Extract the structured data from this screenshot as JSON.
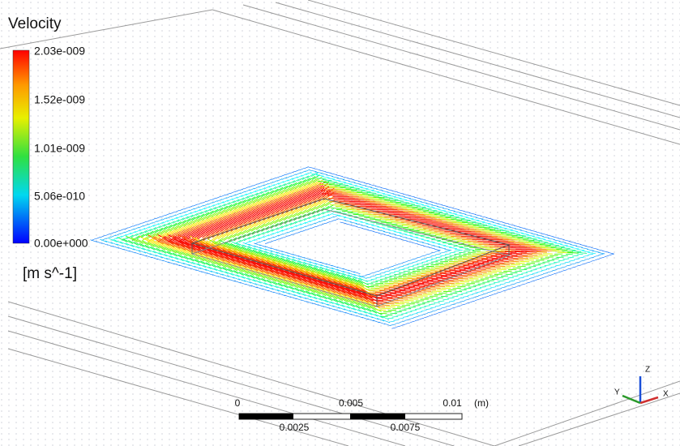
{
  "legend": {
    "title": "Velocity",
    "ticks": [
      "2.03e-009",
      "1.52e-009",
      "1.01e-009",
      "5.06e-010",
      "0.00e+000"
    ],
    "unit": "[m s^-1]"
  },
  "scale_bar": {
    "top_labels": [
      "0",
      "0.005",
      "0.01"
    ],
    "unit": "(m)",
    "bottom_labels": [
      "0.0025",
      "0.0075"
    ]
  },
  "triad": {
    "z": "Z",
    "y": "Y",
    "x": "X"
  }
}
